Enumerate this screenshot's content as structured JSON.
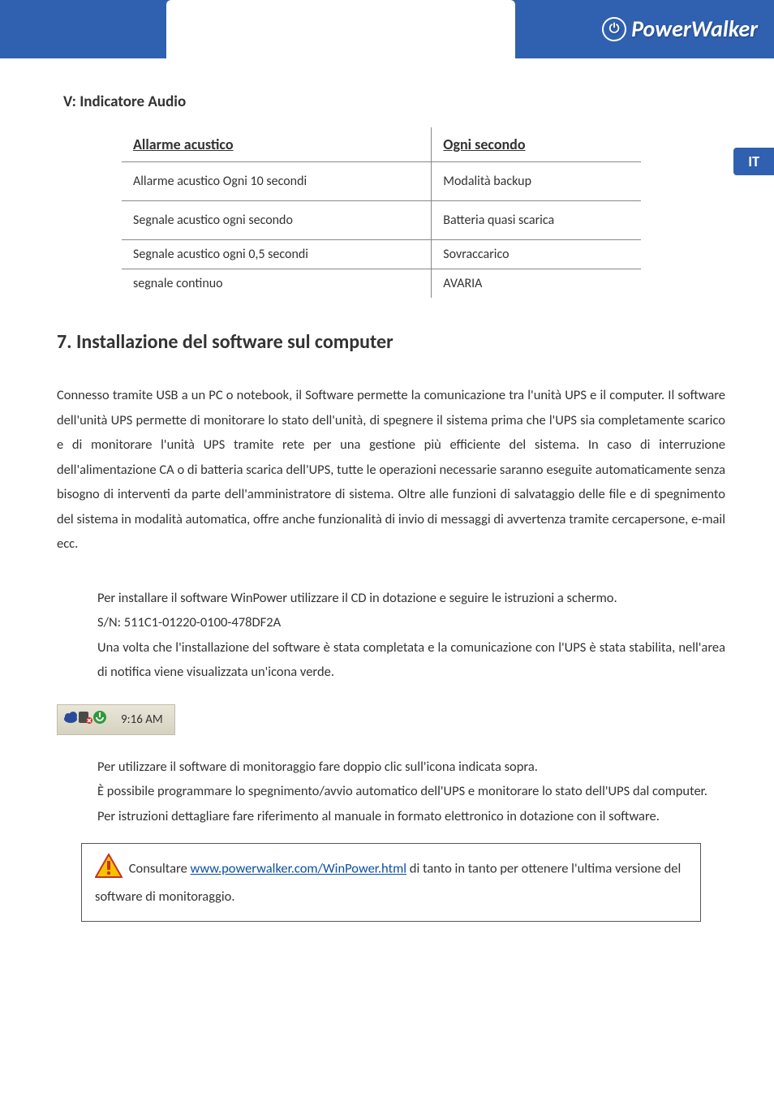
{
  "brand": {
    "name": "PowerWalker",
    "icon_glyph": "⏻"
  },
  "lang_tab": "IT",
  "subheading": "V: Indicatore Audio",
  "table": {
    "header_left": "Allarme acustico",
    "header_right": "Ogni secondo",
    "rows": [
      {
        "left": "Allarme acustico Ogni 10 secondi",
        "right": "Modalità backup",
        "tight": false
      },
      {
        "left": "Segnale acustico ogni secondo",
        "right": "Batteria quasi scarica",
        "tight": false
      },
      {
        "left": "Segnale acustico ogni 0,5 secondi",
        "right": "Sovraccarico",
        "tight": true
      },
      {
        "left": "segnale continuo",
        "right": "AVARIA",
        "tight": true
      }
    ]
  },
  "section_title": "7. Installazione del software sul computer",
  "para1": "Connesso tramite USB a un PC o notebook, il Software permette la comunicazione tra l'unità UPS e il computer.  Il software dell'unità UPS permette di monitorare lo stato dell'unità, di spegnere il sistema prima che l'UPS sia completamente scarico e di monitorare l'unità UPS tramite rete per una gestione più efficiente del sistema. In caso di interruzione dell'alimentazione CA o di batteria scarica dell'UPS, tutte le operazioni necessarie saranno eseguite automaticamente senza bisogno di interventi da parte dell'amministratore di sistema. Oltre alle funzioni di salvataggio delle file e di spegnimento del sistema in modalità automatica, offre anche funzionalità di invio di messaggi di avvertenza tramite cercapersone, e-mail ecc.",
  "install_block": {
    "line1": "Per installare il software WinPower utilizzare il CD in dotazione e seguire le istruzioni a schermo.",
    "line2_prefix": "S/N: ",
    "serial": "511C1-01220-0100-478DF2A",
    "line3": "Una volta che l'installazione del software è stata completata e la comunicazione con l'UPS è stata stabilita, nell'area di notifica viene visualizzata un'icona verde."
  },
  "tray": {
    "time": "9:16 AM",
    "icons": [
      {
        "name": "cloud-icon",
        "fill": "#2a4a9b"
      },
      {
        "name": "device-icon",
        "fill": "#4a4a4a",
        "accent": "#d03030"
      },
      {
        "name": "power-icon",
        "fill": "#2e9a3a"
      }
    ]
  },
  "usage_block": {
    "line1": "Per utilizzare il software di monitoraggio fare doppio clic sull'icona indicata sopra.",
    "line2": "È possibile programmare lo spegnimento/avvio automatico dell'UPS e monitorare lo stato dell'UPS dal computer.",
    "line3": "Per istruzioni dettagliare fare riferimento al manuale in formato elettronico in dotazione con il software."
  },
  "note": {
    "pre": "Consultare ",
    "link_text": "www.powerwalker.com/WinPower.html",
    "link_href": "#",
    "post": " di tanto in tanto per ottenere l'ultima versione del software di monitoraggio."
  },
  "colors": {
    "brand_blue": "#3061b0",
    "link_blue": "#0b4fa0",
    "warn_yellow": "#f5c400",
    "warn_red": "#c83028"
  }
}
